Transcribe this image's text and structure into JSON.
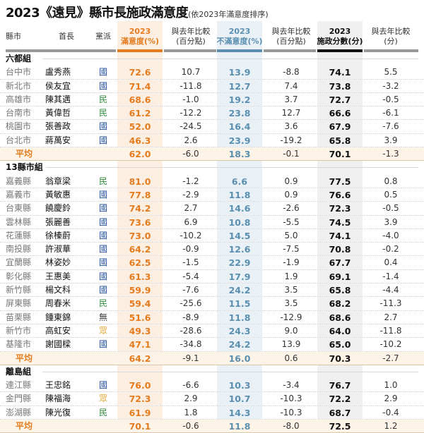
{
  "title": {
    "main": "2023《遠見》縣市長施政滿意度",
    "sub": "(依2023年滿意度排序)"
  },
  "headers": {
    "county": "縣市",
    "mayor": "首長",
    "party": "黨派",
    "sat_year": "2023",
    "sat_label": "滿意度(%)",
    "sat_delta_1": "與去年比較",
    "sat_delta_2": "(百分點)",
    "dis_year": "2023",
    "dis_label": "不滿意度(%)",
    "dis_delta_1": "與去年比較",
    "dis_delta_2": "(百分點)",
    "score_year": "2023",
    "score_label": "施政分數(分)",
    "score_delta_1": "與去年比較",
    "score_delta_2": "(分)"
  },
  "colors": {
    "satisfaction": "#e47c1f",
    "dissatisfaction": "#5a8fb0",
    "score": "#111111",
    "kmt": "#1f4e9e",
    "dpp": "#2e8b3a",
    "tpp": "#e1a93a"
  },
  "groups": [
    {
      "name": "六都組",
      "rows": [
        {
          "county": "台中市",
          "mayor": "盧秀燕",
          "party": "國",
          "party_class": "party-blue",
          "sat": "72.6",
          "sat_d": "10.7",
          "dis": "13.9",
          "dis_d": "-8.8",
          "score": "74.1",
          "score_d": "5.5"
        },
        {
          "county": "新北市",
          "mayor": "侯友宜",
          "party": "國",
          "party_class": "party-blue",
          "sat": "71.4",
          "sat_d": "-11.8",
          "dis": "12.7",
          "dis_d": "7.4",
          "score": "73.8",
          "score_d": "-3.2"
        },
        {
          "county": "高雄市",
          "mayor": "陳其邁",
          "party": "民",
          "party_class": "party-green",
          "sat": "68.6",
          "sat_d": "-1.0",
          "dis": "19.2",
          "dis_d": "3.7",
          "score": "72.7",
          "score_d": "-0.5"
        },
        {
          "county": "台南市",
          "mayor": "黃偉哲",
          "party": "民",
          "party_class": "party-green",
          "sat": "61.2",
          "sat_d": "-12.2",
          "dis": "23.8",
          "dis_d": "12.7",
          "score": "66.6",
          "score_d": "-6.1"
        },
        {
          "county": "桃園市",
          "mayor": "張善政",
          "party": "國",
          "party_class": "party-blue",
          "sat": "52.0",
          "sat_d": "-24.5",
          "dis": "16.4",
          "dis_d": "3.6",
          "score": "67.9",
          "score_d": "-7.6"
        },
        {
          "county": "台北市",
          "mayor": "蔣萬安",
          "party": "國",
          "party_class": "party-blue",
          "sat": "46.3",
          "sat_d": "2.6",
          "dis": "23.9",
          "dis_d": "-19.2",
          "score": "65.8",
          "score_d": "3.9"
        }
      ],
      "avg": {
        "label": "平均",
        "sat": "62.0",
        "sat_d": "-6.0",
        "dis": "18.3",
        "dis_d": "-0.1",
        "score": "70.1",
        "score_d": "-1.3"
      }
    },
    {
      "name": "13縣市組",
      "rows": [
        {
          "county": "嘉義縣",
          "mayor": "翁章梁",
          "party": "民",
          "party_class": "party-green",
          "sat": "81.0",
          "sat_d": "-1.2",
          "dis": "6.6",
          "dis_d": "0.9",
          "score": "77.5",
          "score_d": "0.8"
        },
        {
          "county": "嘉義市",
          "mayor": "黃敏惠",
          "party": "國",
          "party_class": "party-blue",
          "sat": "77.8",
          "sat_d": "-2.9",
          "dis": "11.8",
          "dis_d": "0.9",
          "score": "76.6",
          "score_d": "0.5"
        },
        {
          "county": "台東縣",
          "mayor": "饒慶鈴",
          "party": "國",
          "party_class": "party-blue",
          "sat": "74.2",
          "sat_d": "2.7",
          "dis": "14.6",
          "dis_d": "-2.6",
          "score": "72.3",
          "score_d": "-0.5"
        },
        {
          "county": "雲林縣",
          "mayor": "張麗善",
          "party": "國",
          "party_class": "party-blue",
          "sat": "73.6",
          "sat_d": "6.9",
          "dis": "10.8",
          "dis_d": "-5.5",
          "score": "74.5",
          "score_d": "3.9"
        },
        {
          "county": "花蓮縣",
          "mayor": "徐榛蔚",
          "party": "國",
          "party_class": "party-blue",
          "sat": "73.0",
          "sat_d": "-10.2",
          "dis": "14.5",
          "dis_d": "5.0",
          "score": "74.1",
          "score_d": "-4.0"
        },
        {
          "county": "南投縣",
          "mayor": "許淑華",
          "party": "國",
          "party_class": "party-blue",
          "sat": "64.2",
          "sat_d": "-0.9",
          "dis": "12.6",
          "dis_d": "-7.5",
          "score": "70.8",
          "score_d": "-0.2"
        },
        {
          "county": "宜蘭縣",
          "mayor": "林姿妙",
          "party": "國",
          "party_class": "party-blue",
          "sat": "62.5",
          "sat_d": "-1.5",
          "dis": "22.9",
          "dis_d": "-1.9",
          "score": "67.7",
          "score_d": "0.4"
        },
        {
          "county": "彰化縣",
          "mayor": "王惠美",
          "party": "國",
          "party_class": "party-blue",
          "sat": "61.3",
          "sat_d": "-5.4",
          "dis": "17.9",
          "dis_d": "1.9",
          "score": "69.1",
          "score_d": "-1.4"
        },
        {
          "county": "新竹縣",
          "mayor": "楊文科",
          "party": "國",
          "party_class": "party-blue",
          "sat": "59.9",
          "sat_d": "-7.6",
          "dis": "24.2",
          "dis_d": "3.5",
          "score": "65.8",
          "score_d": "-4.4"
        },
        {
          "county": "屏東縣",
          "mayor": "周春米",
          "party": "民",
          "party_class": "party-green",
          "sat": "59.4",
          "sat_d": "-25.6",
          "dis": "11.5",
          "dis_d": "3.5",
          "score": "68.2",
          "score_d": "-11.3"
        },
        {
          "county": "苗栗縣",
          "mayor": "鍾東錦",
          "party": "無",
          "party_class": "party-gray",
          "sat": "51.6",
          "sat_d": "-8.9",
          "dis": "11.8",
          "dis_d": "-12.9",
          "score": "68.6",
          "score_d": "2.7"
        },
        {
          "county": "新竹市",
          "mayor": "高虹安",
          "party": "眾",
          "party_class": "party-orange",
          "sat": "49.3",
          "sat_d": "-28.6",
          "dis": "24.3",
          "dis_d": "9.0",
          "score": "64.0",
          "score_d": "-11.8"
        },
        {
          "county": "基隆市",
          "mayor": "謝國樑",
          "party": "國",
          "party_class": "party-blue",
          "sat": "47.1",
          "sat_d": "-34.8",
          "dis": "24.2",
          "dis_d": "13.9",
          "score": "65.0",
          "score_d": "-10.2"
        }
      ],
      "avg": {
        "label": "平均",
        "sat": "64.2",
        "sat_d": "-9.1",
        "dis": "16.0",
        "dis_d": "0.6",
        "score": "70.3",
        "score_d": "-2.7"
      }
    },
    {
      "name": "離島組",
      "rows": [
        {
          "county": "連江縣",
          "mayor": "王忠銘",
          "party": "國",
          "party_class": "party-blue",
          "sat": "76.0",
          "sat_d": "-6.6",
          "dis": "10.3",
          "dis_d": "-3.4",
          "score": "76.7",
          "score_d": "1.0"
        },
        {
          "county": "金門縣",
          "mayor": "陳福海",
          "party": "眾",
          "party_class": "party-orange",
          "sat": "72.3",
          "sat_d": "2.9",
          "dis": "10.7",
          "dis_d": "-10.3",
          "score": "72.2",
          "score_d": "2.9"
        },
        {
          "county": "澎湖縣",
          "mayor": "陳光復",
          "party": "民",
          "party_class": "party-green",
          "sat": "61.9",
          "sat_d": "1.8",
          "dis": "14.3",
          "dis_d": "-10.3",
          "score": "68.7",
          "score_d": "-0.4"
        }
      ],
      "avg": {
        "label": "平均",
        "sat": "70.1",
        "sat_d": "-0.6",
        "dis": "11.8",
        "dis_d": "-8.0",
        "score": "72.5",
        "score_d": "1.2"
      }
    }
  ]
}
